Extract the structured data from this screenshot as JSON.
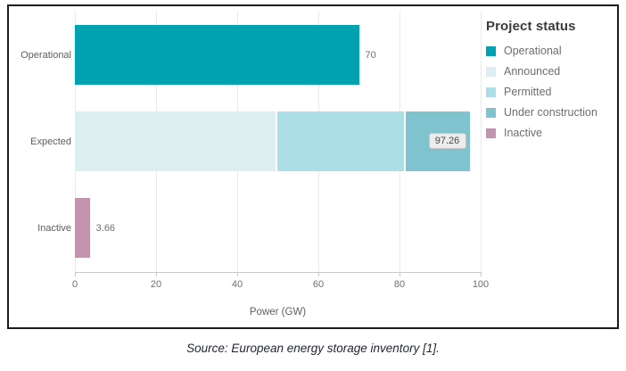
{
  "chart_data": {
    "type": "bar",
    "orientation": "horizontal",
    "categories": [
      "Operational",
      "Expected",
      "Inactive"
    ],
    "series": [
      {
        "name": "Operational",
        "color": "#00A1B0",
        "values": [
          70,
          0,
          0
        ]
      },
      {
        "name": "Announced",
        "color": "#DCEEF0",
        "values": [
          0,
          49.5,
          0
        ]
      },
      {
        "name": "Permitted",
        "color": "#ACDFE5",
        "values": [
          0,
          31.5,
          0
        ]
      },
      {
        "name": "Under construction",
        "color": "#7FC3CF",
        "values": [
          0,
          16.26,
          0
        ]
      },
      {
        "name": "Inactive",
        "color": "#C394AF",
        "values": [
          0,
          0,
          3.66
        ]
      }
    ],
    "bar_totals": [
      70,
      97.26,
      3.66
    ],
    "bar_labels": [
      "70",
      "97.26",
      "3.66"
    ],
    "xlabel": "Power (GW)",
    "xlim": [
      0,
      100
    ],
    "xticks": [
      0,
      20,
      40,
      60,
      80,
      100
    ],
    "grid": "vertical",
    "legend": {
      "title": "Project status",
      "position": "top-right",
      "entries": [
        "Operational",
        "Announced",
        "Permitted",
        "Under construction",
        "Inactive"
      ]
    }
  },
  "source_caption": "Source: European energy storage inventory [1]."
}
